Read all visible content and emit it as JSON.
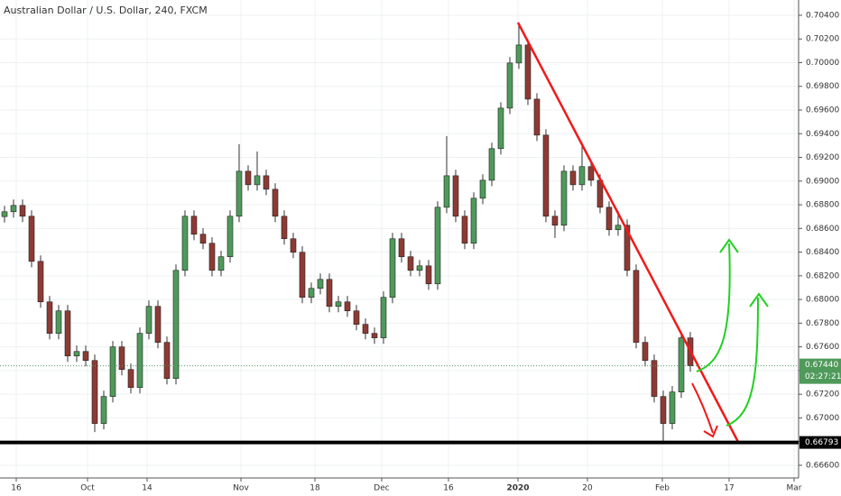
{
  "chart_data": {
    "type": "candlestick",
    "title": "Australian Dollar / U.S. Dollar, 240, FXCM",
    "up_color": "#4f9a5b",
    "down_color": "#8e3a34",
    "grid": true,
    "ylim": [
      0.66493,
      0.70529
    ],
    "yticks": [
      {
        "value": 0.704,
        "label": "0.70400"
      },
      {
        "value": 0.702,
        "label": "0.70200"
      },
      {
        "value": 0.7,
        "label": "0.70000"
      },
      {
        "value": 0.698,
        "label": "0.69800"
      },
      {
        "value": 0.696,
        "label": "0.69600"
      },
      {
        "value": 0.694,
        "label": "0.69400"
      },
      {
        "value": 0.692,
        "label": "0.69200"
      },
      {
        "value": 0.69,
        "label": "0.69000"
      },
      {
        "value": 0.688,
        "label": "0.68800"
      },
      {
        "value": 0.686,
        "label": "0.68600"
      },
      {
        "value": 0.684,
        "label": "0.68400"
      },
      {
        "value": 0.682,
        "label": "0.68200"
      },
      {
        "value": 0.68,
        "label": "0.68000"
      },
      {
        "value": 0.678,
        "label": "0.67800"
      },
      {
        "value": 0.676,
        "label": "0.67600"
      },
      {
        "value": 0.674,
        "label": "0.67400"
      },
      {
        "value": 0.672,
        "label": "0.67200"
      },
      {
        "value": 0.67,
        "label": "0.67000"
      },
      {
        "value": 0.668,
        "label": "0.66800"
      },
      {
        "value": 0.666,
        "label": "0.66600"
      }
    ],
    "xlim": [
      0,
      88.5
    ],
    "xticks": [
      {
        "value": 1.8,
        "label": "16"
      },
      {
        "value": 9.7,
        "label": "Oct"
      },
      {
        "value": 16.3,
        "label": "14"
      },
      {
        "value": 26.7,
        "label": "Nov"
      },
      {
        "value": 34.9,
        "label": "18"
      },
      {
        "value": 42.3,
        "label": "Dec"
      },
      {
        "value": 49.7,
        "label": "16"
      },
      {
        "value": 57.4,
        "label": "2020"
      },
      {
        "value": 65.1,
        "label": "20"
      },
      {
        "value": 73.4,
        "label": "Feb"
      },
      {
        "value": 80.8,
        "label": "17"
      },
      {
        "value": 88.0,
        "label": "Mar"
      }
    ],
    "current_price": {
      "value": 0.6744,
      "label": "0.67440",
      "color": "#4f9a5b"
    },
    "countdown": "02:27:21",
    "support_line": {
      "value": 0.66793,
      "label": "0.66793",
      "color": "#000000"
    },
    "ohlc": [
      [
        0.687,
        0.68791,
        0.6865,
        0.68741
      ],
      [
        0.68741,
        0.68844,
        0.68691,
        0.68794
      ],
      [
        0.68794,
        0.68844,
        0.68653,
        0.68703
      ],
      [
        0.68703,
        0.68753,
        0.68272,
        0.68322
      ],
      [
        0.68322,
        0.68372,
        0.6793,
        0.6798
      ],
      [
        0.6798,
        0.6803,
        0.67664,
        0.67714
      ],
      [
        0.67714,
        0.67954,
        0.67664,
        0.67904
      ],
      [
        0.67904,
        0.67954,
        0.67473,
        0.67523
      ],
      [
        0.67523,
        0.67611,
        0.67473,
        0.67561
      ],
      [
        0.67561,
        0.67611,
        0.67435,
        0.67485
      ],
      [
        0.67485,
        0.67535,
        0.6688,
        0.66953
      ],
      [
        0.66953,
        0.67231,
        0.66903,
        0.67181
      ],
      [
        0.67181,
        0.6765,
        0.67131,
        0.676
      ],
      [
        0.676,
        0.6765,
        0.67359,
        0.67409
      ],
      [
        0.67409,
        0.67459,
        0.67207,
        0.67257
      ],
      [
        0.67257,
        0.67764,
        0.67207,
        0.67714
      ],
      [
        0.67714,
        0.67992,
        0.67664,
        0.67942
      ],
      [
        0.67942,
        0.67992,
        0.67588,
        0.67638
      ],
      [
        0.67638,
        0.67688,
        0.67283,
        0.67333
      ],
      [
        0.67333,
        0.68296,
        0.67283,
        0.68246
      ],
      [
        0.68246,
        0.68753,
        0.68196,
        0.68703
      ],
      [
        0.68703,
        0.68753,
        0.68501,
        0.68551
      ],
      [
        0.68551,
        0.68601,
        0.68425,
        0.68475
      ],
      [
        0.68475,
        0.68525,
        0.68196,
        0.68246
      ],
      [
        0.68246,
        0.68411,
        0.68196,
        0.68361
      ],
      [
        0.68361,
        0.68753,
        0.68311,
        0.68703
      ],
      [
        0.68703,
        0.69312,
        0.68653,
        0.69083
      ],
      [
        0.69083,
        0.69133,
        0.68919,
        0.68969
      ],
      [
        0.68969,
        0.6925,
        0.68919,
        0.69045
      ],
      [
        0.69045,
        0.69095,
        0.68881,
        0.68931
      ],
      [
        0.68931,
        0.68981,
        0.68653,
        0.68703
      ],
      [
        0.68703,
        0.68753,
        0.68463,
        0.68513
      ],
      [
        0.68513,
        0.68563,
        0.68349,
        0.68399
      ],
      [
        0.68399,
        0.68449,
        0.67968,
        0.68018
      ],
      [
        0.68018,
        0.68144,
        0.67968,
        0.68094
      ],
      [
        0.68094,
        0.6822,
        0.68044,
        0.6817
      ],
      [
        0.6817,
        0.6822,
        0.67892,
        0.67942
      ],
      [
        0.67942,
        0.6803,
        0.67892,
        0.6798
      ],
      [
        0.6798,
        0.6803,
        0.67854,
        0.67904
      ],
      [
        0.67904,
        0.67954,
        0.6774,
        0.6779
      ],
      [
        0.6779,
        0.6784,
        0.67664,
        0.67714
      ],
      [
        0.67714,
        0.67764,
        0.67626,
        0.67676
      ],
      [
        0.67676,
        0.68068,
        0.67626,
        0.68018
      ],
      [
        0.68018,
        0.68563,
        0.67968,
        0.68513
      ],
      [
        0.68513,
        0.68563,
        0.68311,
        0.68361
      ],
      [
        0.68361,
        0.68411,
        0.68196,
        0.68246
      ],
      [
        0.68246,
        0.68334,
        0.68196,
        0.68284
      ],
      [
        0.68284,
        0.68334,
        0.68082,
        0.68132
      ],
      [
        0.68132,
        0.68829,
        0.68082,
        0.68779
      ],
      [
        0.68779,
        0.6938,
        0.68729,
        0.69045
      ],
      [
        0.69045,
        0.69095,
        0.68653,
        0.68703
      ],
      [
        0.68703,
        0.68753,
        0.68425,
        0.68475
      ],
      [
        0.68475,
        0.68905,
        0.68425,
        0.68855
      ],
      [
        0.68855,
        0.69057,
        0.68805,
        0.69007
      ],
      [
        0.69007,
        0.69324,
        0.68957,
        0.69274
      ],
      [
        0.69274,
        0.69666,
        0.69224,
        0.69616
      ],
      [
        0.69616,
        0.70047,
        0.69566,
        0.69997
      ],
      [
        0.69997,
        0.7032,
        0.69947,
        0.70149
      ],
      [
        0.70149,
        0.70199,
        0.69642,
        0.69692
      ],
      [
        0.69692,
        0.69742,
        0.69338,
        0.69388
      ],
      [
        0.69388,
        0.69438,
        0.68653,
        0.68703
      ],
      [
        0.68703,
        0.68753,
        0.6852,
        0.68627
      ],
      [
        0.68627,
        0.69133,
        0.68577,
        0.69083
      ],
      [
        0.69083,
        0.69133,
        0.68919,
        0.68969
      ],
      [
        0.68969,
        0.6933,
        0.68919,
        0.69122
      ],
      [
        0.69122,
        0.69172,
        0.68957,
        0.69007
      ],
      [
        0.69007,
        0.69057,
        0.68729,
        0.68779
      ],
      [
        0.68779,
        0.68829,
        0.68539,
        0.68589
      ],
      [
        0.68589,
        0.6875,
        0.68539,
        0.68627
      ],
      [
        0.68627,
        0.68677,
        0.68196,
        0.68246
      ],
      [
        0.68246,
        0.68296,
        0.67588,
        0.67638
      ],
      [
        0.67638,
        0.67688,
        0.67435,
        0.67485
      ],
      [
        0.67485,
        0.67535,
        0.67131,
        0.67181
      ],
      [
        0.67181,
        0.67231,
        0.66793,
        0.66953
      ],
      [
        0.66953,
        0.67269,
        0.66903,
        0.67219
      ],
      [
        0.67219,
        0.67726,
        0.67169,
        0.67676
      ],
      [
        0.67676,
        0.67726,
        0.6739,
        0.6744
      ]
    ]
  }
}
